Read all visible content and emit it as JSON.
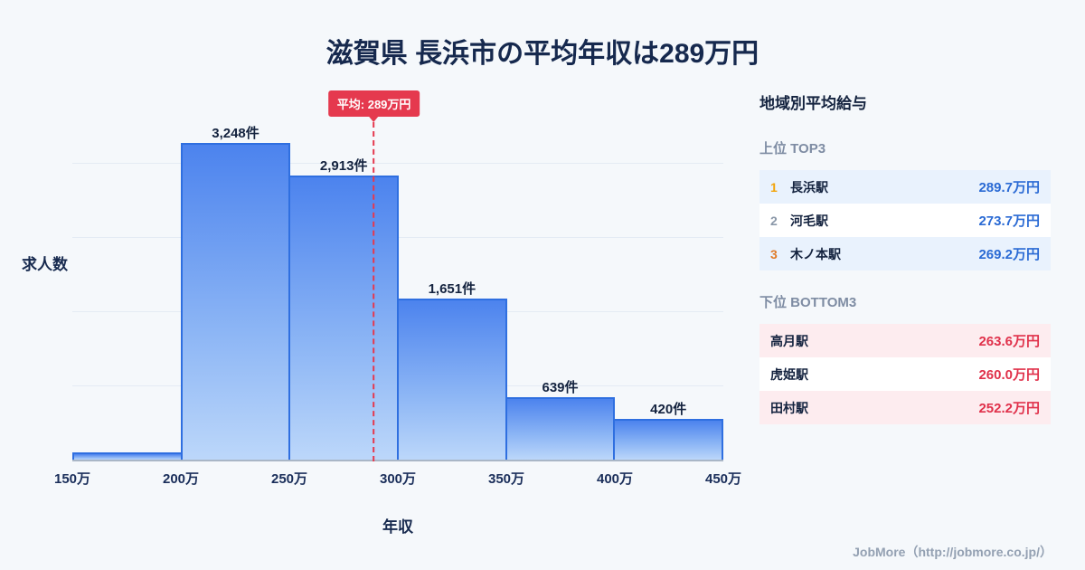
{
  "page": {
    "title": "滋賀県 長浜市の平均年収は289万円",
    "footer": "JobMore（http://jobmore.co.jp/）"
  },
  "chart_data": {
    "type": "bar",
    "title": "滋賀県 長浜市の平均年収は289万円",
    "xlabel": "年収",
    "ylabel": "求人数",
    "x_ticks": [
      "150万",
      "200万",
      "250万",
      "300万",
      "350万",
      "400万",
      "450万"
    ],
    "bins": [
      {
        "range": "150万-200万",
        "count": 75,
        "label": ""
      },
      {
        "range": "200万-250万",
        "count": 3248,
        "label": "3,248件"
      },
      {
        "range": "250万-300万",
        "count": 2913,
        "label": "2,913件"
      },
      {
        "range": "300万-350万",
        "count": 1651,
        "label": "1,651件"
      },
      {
        "range": "350万-400万",
        "count": 639,
        "label": "639件"
      },
      {
        "range": "400万-450万",
        "count": 420,
        "label": "420件"
      }
    ],
    "average_line": {
      "label": "平均: 289万円",
      "value": 289,
      "x_min": 150,
      "x_max": 450
    },
    "grid": true,
    "legend": "none",
    "colors": {
      "bar_top": "#4c83ee",
      "bar_bottom": "#bcd7fa",
      "bar_border": "#2f6fe0",
      "average": "#e5394e",
      "title_text": "#16294e"
    }
  },
  "sidebar": {
    "title": "地域別平均給与",
    "top_section": {
      "heading": "上位 TOP3",
      "rows": [
        {
          "rank": "1",
          "station": "長浜駅",
          "value": "289.7万円"
        },
        {
          "rank": "2",
          "station": "河毛駅",
          "value": "273.7万円"
        },
        {
          "rank": "3",
          "station": "木ノ本駅",
          "value": "269.2万円"
        }
      ]
    },
    "bottom_section": {
      "heading": "下位 BOTTOM3",
      "rows": [
        {
          "station": "高月駅",
          "value": "263.6万円"
        },
        {
          "station": "虎姫駅",
          "value": "260.0万円"
        },
        {
          "station": "田村駅",
          "value": "252.2万円"
        }
      ]
    }
  }
}
